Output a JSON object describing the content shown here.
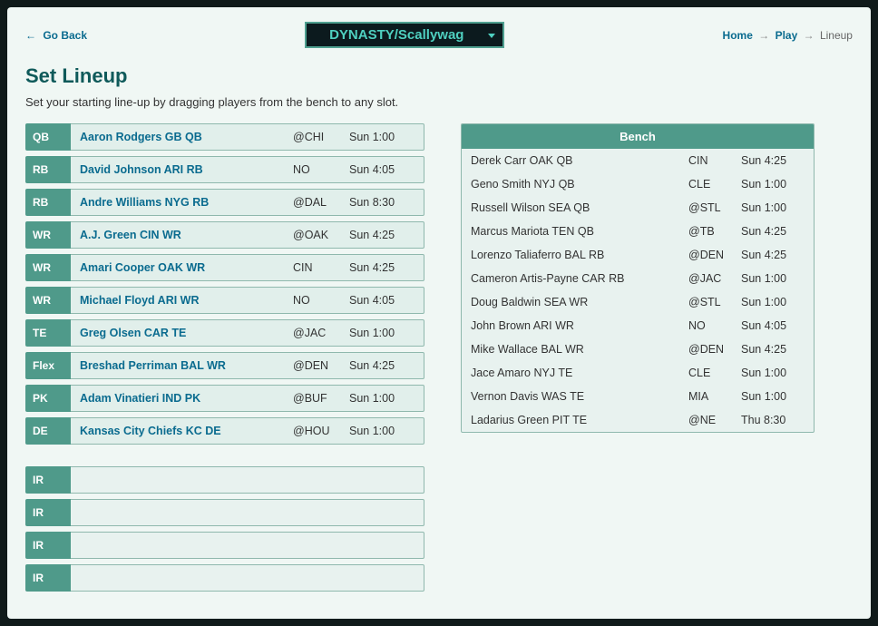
{
  "nav": {
    "go_back": "Go Back",
    "arrow_left": "←",
    "arrow_right": "→",
    "home": "Home",
    "play": "Play",
    "current": "Lineup"
  },
  "team_select": "DYNASTY/Scallywag",
  "title": "Set Lineup",
  "subtitle": "Set your starting line-up by dragging players from the bench to any slot.",
  "slots": [
    {
      "pos": "QB",
      "player": "Aaron Rodgers GB QB",
      "opp": "@CHI",
      "time": "Sun 1:00"
    },
    {
      "pos": "RB",
      "player": "David Johnson ARI RB",
      "opp": "NO",
      "time": "Sun 4:05"
    },
    {
      "pos": "RB",
      "player": "Andre Williams NYG RB",
      "opp": "@DAL",
      "time": "Sun 8:30"
    },
    {
      "pos": "WR",
      "player": "A.J. Green CIN WR",
      "opp": "@OAK",
      "time": "Sun 4:25"
    },
    {
      "pos": "WR",
      "player": "Amari Cooper OAK WR",
      "opp": "CIN",
      "time": "Sun 4:25"
    },
    {
      "pos": "WR",
      "player": "Michael Floyd ARI WR",
      "opp": "NO",
      "time": "Sun 4:05"
    },
    {
      "pos": "TE",
      "player": "Greg Olsen CAR TE",
      "opp": "@JAC",
      "time": "Sun 1:00"
    },
    {
      "pos": "Flex",
      "player": "Breshad Perriman BAL WR",
      "opp": "@DEN",
      "time": "Sun 4:25"
    },
    {
      "pos": "PK",
      "player": "Adam Vinatieri IND PK",
      "opp": "@BUF",
      "time": "Sun 1:00"
    },
    {
      "pos": "DE",
      "player": "Kansas City Chiefs KC DE",
      "opp": "@HOU",
      "time": "Sun 1:00"
    }
  ],
  "ir_slots": [
    {
      "pos": "IR"
    },
    {
      "pos": "IR"
    },
    {
      "pos": "IR"
    },
    {
      "pos": "IR"
    }
  ],
  "bench_header": "Bench",
  "bench": [
    {
      "player": "Derek Carr OAK QB",
      "opp": "CIN",
      "time": "Sun 4:25"
    },
    {
      "player": "Geno Smith NYJ QB",
      "opp": "CLE",
      "time": "Sun 1:00"
    },
    {
      "player": "Russell Wilson SEA QB",
      "opp": "@STL",
      "time": "Sun 1:00"
    },
    {
      "player": "Marcus Mariota TEN QB",
      "opp": "@TB",
      "time": "Sun 4:25"
    },
    {
      "player": "Lorenzo Taliaferro BAL RB",
      "opp": "@DEN",
      "time": "Sun 4:25"
    },
    {
      "player": "Cameron Artis-Payne CAR RB",
      "opp": "@JAC",
      "time": "Sun 1:00"
    },
    {
      "player": "Doug Baldwin SEA WR",
      "opp": "@STL",
      "time": "Sun 1:00"
    },
    {
      "player": "John Brown ARI WR",
      "opp": "NO",
      "time": "Sun 4:05"
    },
    {
      "player": "Mike Wallace BAL WR",
      "opp": "@DEN",
      "time": "Sun 4:25"
    },
    {
      "player": "Jace Amaro NYJ TE",
      "opp": "CLE",
      "time": "Sun 1:00"
    },
    {
      "player": "Vernon Davis WAS TE",
      "opp": "MIA",
      "time": "Sun 1:00"
    },
    {
      "player": "Ladarius Green PIT TE",
      "opp": "@NE",
      "time": "Thu 8:30"
    }
  ],
  "colors": {
    "page_bg": "#f0f7f4",
    "outer_bg": "#101a1a",
    "accent": "#4f9a8a",
    "link": "#0a6b8f",
    "select_bg": "#0c1a1e",
    "select_text": "#4fd0c0"
  }
}
